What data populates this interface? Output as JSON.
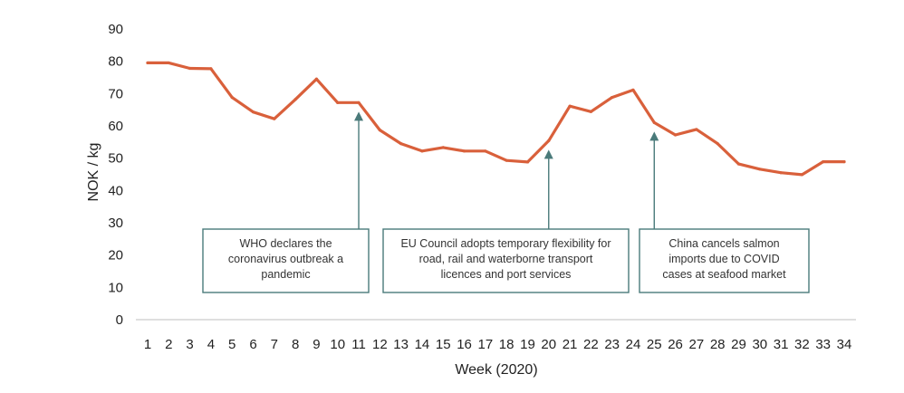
{
  "chart_data": {
    "type": "line",
    "title": "",
    "xlabel": "Week (2020)",
    "ylabel": "NOK / kg",
    "x": [
      1,
      2,
      3,
      4,
      5,
      6,
      7,
      8,
      9,
      10,
      11,
      12,
      13,
      14,
      15,
      16,
      17,
      18,
      19,
      20,
      21,
      22,
      23,
      24,
      25,
      26,
      27,
      28,
      29,
      30,
      31,
      32,
      33,
      34
    ],
    "series": [
      {
        "values": [
          79.5,
          79.5,
          77.8,
          77.7,
          68.8,
          64.3,
          62.2,
          68.2,
          74.5,
          67.2,
          67.2,
          58.7,
          54.5,
          52.2,
          53.3,
          52.2,
          52.2,
          49.3,
          48.8,
          55.4,
          66.1,
          64.4,
          68.8,
          71.1,
          61.0,
          57.2,
          58.9,
          54.5,
          48.2,
          46.6,
          45.5,
          44.9,
          48.9,
          48.9
        ],
        "color": "#D9603B"
      }
    ],
    "yticks": [
      0,
      10,
      20,
      30,
      40,
      50,
      60,
      70,
      80,
      90
    ],
    "ylim": [
      0,
      90
    ],
    "xlim": [
      1,
      34
    ],
    "grid": false,
    "legend": "none",
    "annotations": [
      {
        "x": 11,
        "y": 67.2,
        "lines": [
          "WHO declares the",
          "coronavirus outbreak a",
          "pandemic"
        ]
      },
      {
        "x": 20,
        "y": 55.4,
        "lines": [
          "EU Council adopts temporary flexibility for",
          "road, rail and waterborne transport",
          "licences and port services"
        ]
      },
      {
        "x": 25,
        "y": 61.0,
        "lines": [
          "China cancels salmon",
          "imports due to COVID",
          "cases at seafood market"
        ]
      }
    ],
    "annotation_color": "#4A7A7A",
    "axis_color": "#BFBFBF"
  }
}
